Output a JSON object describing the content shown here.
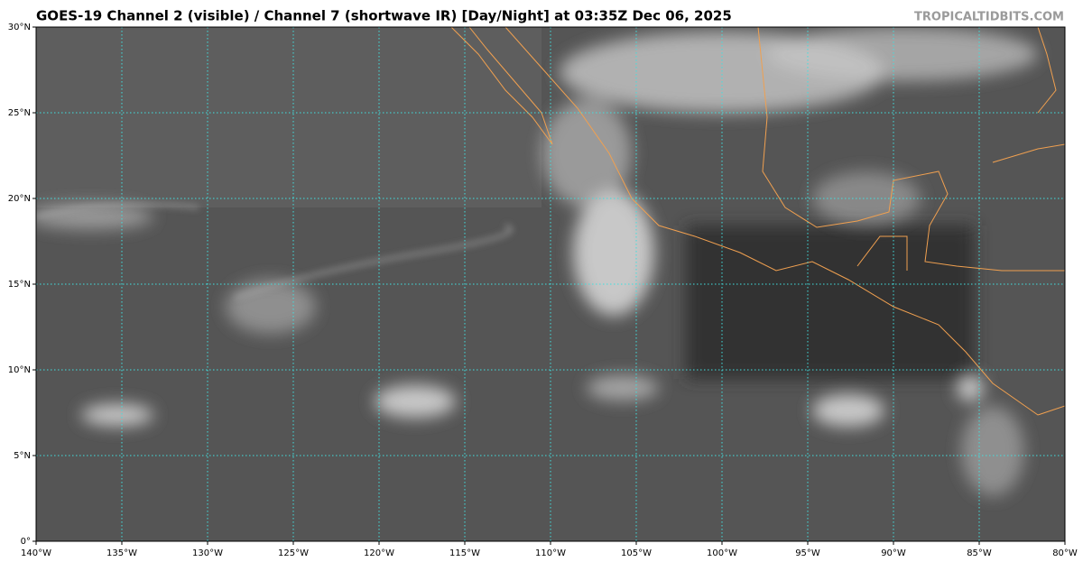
{
  "map": {
    "title": "GOES-19 Channel 2 (visible) / Channel 7 (shortwave IR) [Day/Night] at 03:35Z Dec 06, 2025",
    "credit": "TROPICALTIDBITS.COM",
    "xlim": [
      -140,
      -80
    ],
    "ylim": [
      0,
      30
    ],
    "xticks": [
      {
        "value": -140,
        "label": "140°W"
      },
      {
        "value": -135,
        "label": "135°W"
      },
      {
        "value": -130,
        "label": "130°W"
      },
      {
        "value": -125,
        "label": "125°W"
      },
      {
        "value": -120,
        "label": "120°W"
      },
      {
        "value": -115,
        "label": "115°W"
      },
      {
        "value": -110,
        "label": "110°W"
      },
      {
        "value": -105,
        "label": "105°W"
      },
      {
        "value": -100,
        "label": "100°W"
      },
      {
        "value": -95,
        "label": "95°W"
      },
      {
        "value": -90,
        "label": "90°W"
      },
      {
        "value": -85,
        "label": "85°W"
      },
      {
        "value": -80,
        "label": "80°W"
      }
    ],
    "yticks": [
      {
        "value": 0,
        "label": "0°"
      },
      {
        "value": 5,
        "label": "5°N"
      },
      {
        "value": 10,
        "label": "10°N"
      },
      {
        "value": 15,
        "label": "15°N"
      },
      {
        "value": 20,
        "label": "20°N"
      },
      {
        "value": 25,
        "label": "25°N"
      },
      {
        "value": 30,
        "label": "30°N"
      }
    ],
    "grid": true
  }
}
